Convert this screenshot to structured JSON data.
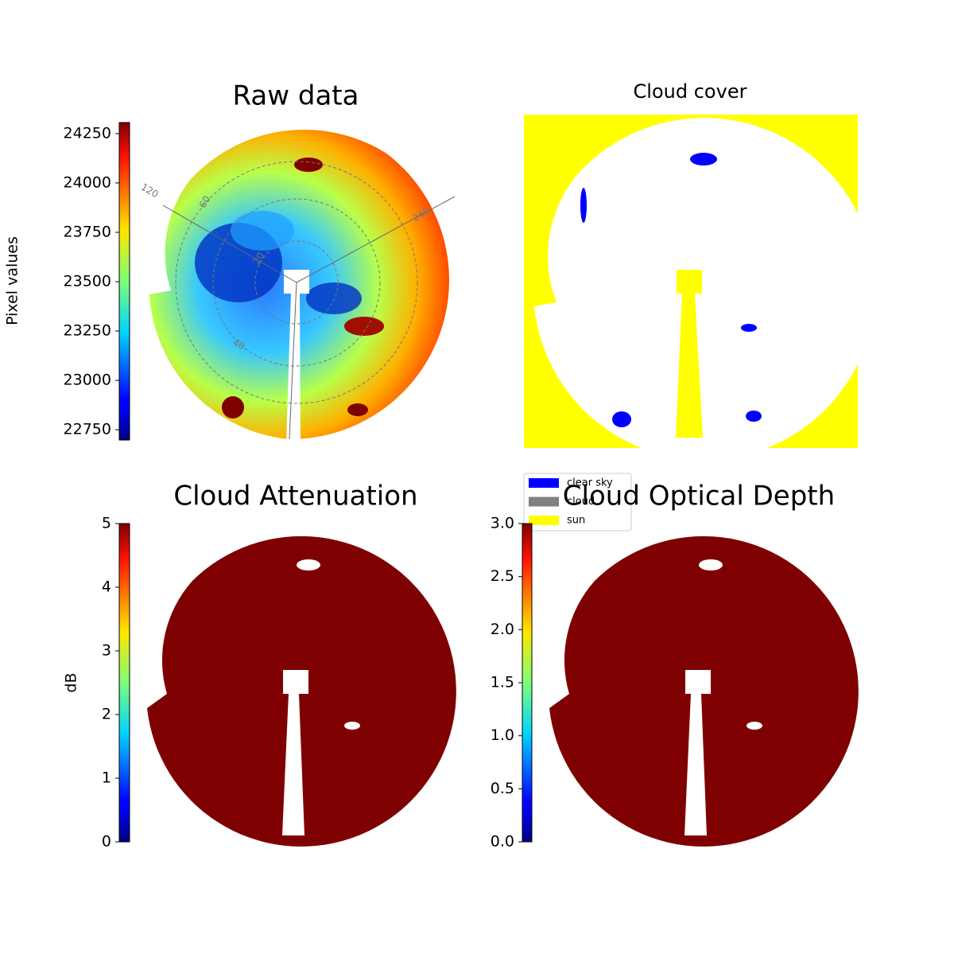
{
  "chart_data": [
    {
      "type": "image",
      "title": "Raw data",
      "colorbar_label": "Pixel values",
      "colormap": "jet",
      "ylim": [
        22698,
        24306
      ],
      "yticks": [
        22750,
        23000,
        23250,
        23500,
        23750,
        24000,
        24250
      ],
      "annotations": [
        "120",
        "240",
        "60",
        "20",
        "40"
      ]
    },
    {
      "type": "image",
      "title": "Cloud cover",
      "legend": [
        {
          "name": "clear sky",
          "color": "#0000ff"
        },
        {
          "name": "cloud",
          "color": "#808080"
        },
        {
          "name": "sun",
          "color": "#ffff00"
        }
      ],
      "legend_position": "lower left"
    },
    {
      "type": "image",
      "title": "Cloud Attenuation",
      "colorbar_label": "dB",
      "colormap": "jet",
      "ylim": [
        0,
        5
      ],
      "yticks": [
        0,
        1,
        2,
        3,
        4,
        5
      ]
    },
    {
      "type": "image",
      "title": "Cloud Optical Depth",
      "colormap": "jet",
      "ylim": [
        0,
        3
      ],
      "yticks": [
        {
          "value": 0,
          "label": "0.0"
        },
        {
          "value": 0.5,
          "label": "0.5"
        },
        {
          "value": 1,
          "label": "1.0"
        },
        {
          "value": 1.5,
          "label": "1.5"
        },
        {
          "value": 2,
          "label": "2.0"
        },
        {
          "value": 2.5,
          "label": "2.5"
        },
        {
          "value": 3,
          "label": "3.0"
        }
      ]
    }
  ]
}
